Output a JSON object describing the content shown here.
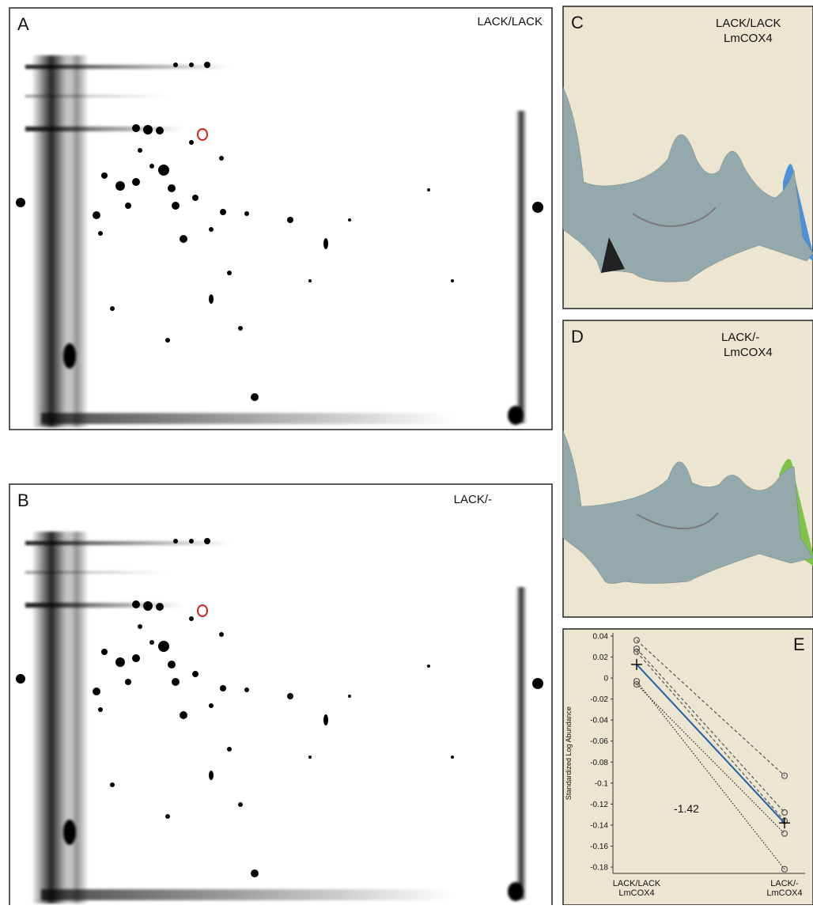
{
  "panels": [
    {
      "letter": "A",
      "label": [
        "LACK/LACK"
      ]
    },
    {
      "letter": "B",
      "label": [
        "LACK/-"
      ]
    },
    {
      "letter": "C",
      "label": [
        "LACK/LACK",
        "LmCOX4"
      ]
    },
    {
      "letter": "D",
      "label": [
        "LACK/-",
        "LmCOX4"
      ]
    }
  ],
  "chart_data": {
    "type": "line",
    "panel": "E",
    "y_label": "Standardized Log Abundance",
    "categories": [
      [
        "LACK/LACK",
        "LmCOX4"
      ],
      [
        "LACK/-",
        "LmCOX4"
      ]
    ],
    "annotation": "-1.42",
    "ylim": [
      -0.186,
      0.043
    ],
    "yticks": [
      0.04,
      0.02,
      0,
      -0.02,
      -0.04,
      -0.06,
      -0.08,
      -0.1,
      -0.12,
      -0.14,
      -0.16,
      -0.18
    ],
    "series": [
      {
        "color": "#555555",
        "style": "dashed",
        "values": [
          0.036,
          -0.093
        ]
      },
      {
        "color": "#555555",
        "style": "dashed",
        "values": [
          0.028,
          -0.128
        ]
      },
      {
        "color": "#555555",
        "style": "dashed",
        "values": [
          0.025,
          -0.136
        ]
      },
      {
        "color": "#222222",
        "style": "dotted",
        "values": [
          -0.003,
          -0.182
        ]
      },
      {
        "color": "#222222",
        "style": "dotted",
        "values": [
          -0.006,
          -0.148
        ]
      },
      {
        "color": "#1f5fa8",
        "style": "mean",
        "values": [
          0.013,
          -0.138
        ]
      }
    ]
  }
}
